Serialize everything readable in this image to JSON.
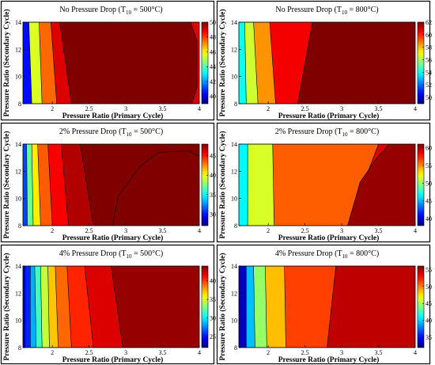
{
  "figure": {
    "title": ""
  },
  "chart_data": [
    {
      "type": "heatmap",
      "title_pre": "No Pressure Drop (T",
      "title_sub": "10",
      "title_post": " = 500°C)",
      "xlabel": "Pressure Ratio (Primary Cycle)",
      "ylabel": "Pressure Ratio (Secondary Cycle)",
      "xlim": [
        1.6,
        4.0
      ],
      "ylim": [
        8,
        14
      ],
      "xticks": [
        "2",
        "2.5",
        "3",
        "3.5",
        "4"
      ],
      "yticks": [
        "8",
        "10",
        "12",
        "14"
      ],
      "colorbar": {
        "min": 39,
        "max": 50,
        "ticks": [
          "40",
          "42",
          "44",
          "46",
          "48",
          "50"
        ]
      },
      "regions": [
        {
          "level": 40.5,
          "x_bottom": 1.72,
          "x_top": 1.68
        },
        {
          "level": 45.5,
          "x_bottom": 1.86,
          "x_top": 1.82
        },
        {
          "level": 47.5,
          "x_bottom": 2.06,
          "x_top": 1.98
        },
        {
          "level": 49.0,
          "x_bottom": 2.26,
          "x_top": 2.1
        },
        {
          "level": 50.0
        }
      ],
      "right_boundary": {
        "top": [
          3.88,
          14
        ],
        "right_top": [
          3.97,
          12.6
        ],
        "right_bottom": [
          3.97,
          9.2
        ],
        "bottom": [
          3.9,
          8
        ],
        "level": 49.0
      }
    },
    {
      "type": "heatmap",
      "title_pre": "No Pressure Drop (T",
      "title_sub": "10",
      "title_post": " = 800°C)",
      "xlabel": "Pressure Ratio (Primary Cycle)",
      "ylabel": "Pressure Ratio (Secondary Cycle)",
      "xlim": [
        1.6,
        4.0
      ],
      "ylim": [
        8,
        14
      ],
      "xticks": [
        "2",
        "2.5",
        "3",
        "3.5",
        "4"
      ],
      "yticks": [
        "8",
        "10",
        "12",
        "14"
      ],
      "colorbar": {
        "min": 49,
        "max": 62,
        "ticks": [
          "50",
          "52",
          "54",
          "56",
          "58",
          "60",
          "62"
        ]
      },
      "regions": [
        {
          "level": 54.0,
          "x_bottom": 1.7,
          "x_top": 1.68
        },
        {
          "level": 56.5,
          "x_bottom": 1.86,
          "x_top": 1.8
        },
        {
          "level": 58.5,
          "x_bottom": 2.1,
          "x_top": 2.02
        },
        {
          "level": 60.5,
          "x_bottom": 2.4,
          "x_top": 2.6
        },
        {
          "level": 62.0
        }
      ]
    },
    {
      "type": "heatmap",
      "title_pre": "2% Pressure Drop (T",
      "title_sub": "10",
      "title_post": " = 500°C)",
      "xlabel": "Pressure Ratio (Primary Cycle)",
      "ylabel": "Pressure Ratio (Secondary Cycle)",
      "xlim": [
        1.6,
        4.0
      ],
      "ylim": [
        8,
        14
      ],
      "xticks": [
        "2",
        "2.5",
        "3",
        "3.5",
        "4"
      ],
      "yticks": [
        "8",
        "10",
        "12",
        "14"
      ],
      "colorbar": {
        "min": 27,
        "max": 48,
        "ticks": [
          "30",
          "35",
          "40",
          "45"
        ]
      },
      "regions": [
        {
          "level": 31.0,
          "x_bottom": 1.66,
          "x_top": 1.65
        },
        {
          "level": 37.0,
          "x_bottom": 1.74,
          "x_top": 1.72
        },
        {
          "level": 40.5,
          "x_bottom": 1.84,
          "x_top": 1.8
        },
        {
          "level": 43.5,
          "x_bottom": 2.0,
          "x_top": 1.94
        },
        {
          "level": 45.5,
          "x_bottom": 2.22,
          "x_top": 2.12
        },
        {
          "level": 47.0,
          "x_bottom": 2.56,
          "x_top": 2.38
        },
        {
          "level": 48.0
        }
      ],
      "hump": {
        "level": 47.0
      }
    },
    {
      "type": "heatmap",
      "title_pre": "2% Pressure Drop (T",
      "title_sub": "10",
      "title_post": " = 800°C)",
      "xlabel": "Pressure Ratio (Primary Cycle)",
      "ylabel": "Pressure Ratio (Secondary Cycle)",
      "xlim": [
        1.6,
        4.0
      ],
      "ylim": [
        8,
        14
      ],
      "xticks": [
        "2",
        "2.5",
        "3",
        "3.5",
        "4"
      ],
      "yticks": [
        "8",
        "10",
        "12",
        "14"
      ],
      "colorbar": {
        "min": 38,
        "max": 61,
        "ticks": [
          "40",
          "45",
          "50",
          "55",
          "60"
        ]
      },
      "regions": [
        {
          "level": 46.5,
          "x_bottom": 1.72,
          "x_top": 1.72
        },
        {
          "level": 51.5,
          "x_bottom": 2.08,
          "x_top": 2.06
        },
        {
          "level": 56.0,
          "x_bottom": 3.08,
          "x_top": 3.5
        },
        {
          "level": 59.0,
          "x_bottom": 4.0,
          "x_top": 4.0
        },
        {
          "level": 60.5
        }
      ],
      "wedge": {
        "level": 60.5
      }
    },
    {
      "type": "heatmap",
      "title_pre": "4% Pressure Drop (T",
      "title_sub": "10",
      "title_post": " = 500°C)",
      "xlabel": "Pressure Ratio (Primary Cycle)",
      "ylabel": "Pressure Ratio (Secondary Cycle)",
      "xlim": [
        1.6,
        4.0
      ],
      "ylim": [
        8,
        14
      ],
      "xticks": [
        "2",
        "2.5",
        "3",
        "3.5",
        "4"
      ],
      "yticks": [
        "8",
        "10",
        "12",
        "14"
      ],
      "colorbar": {
        "min": 22,
        "max": 44,
        "ticks": [
          "25",
          "30",
          "35",
          "40"
        ]
      },
      "regions": [
        {
          "level": 23.0,
          "x_bottom": 1.63,
          "x_top": 1.63
        },
        {
          "level": 25.5,
          "x_bottom": 1.7,
          "x_top": 1.7
        },
        {
          "level": 28.5,
          "x_bottom": 1.78,
          "x_top": 1.76
        },
        {
          "level": 31.5,
          "x_bottom": 1.86,
          "x_top": 1.84
        },
        {
          "level": 34.5,
          "x_bottom": 1.96,
          "x_top": 1.94
        },
        {
          "level": 37.0,
          "x_bottom": 2.08,
          "x_top": 2.04
        },
        {
          "level": 39.0,
          "x_bottom": 2.26,
          "x_top": 2.2
        },
        {
          "level": 40.5,
          "x_bottom": 2.56,
          "x_top": 2.44
        },
        {
          "level": 42.0,
          "x_bottom": 2.96,
          "x_top": 2.8
        },
        {
          "level": 43.5
        }
      ]
    },
    {
      "type": "heatmap",
      "title_pre": "4% Pressure Drop (T",
      "title_sub": "10",
      "title_post": " = 800°C)",
      "xlabel": "Pressure Ratio (Primary Cycle)",
      "ylabel": "Pressure Ratio (Secondary Cycle)",
      "xlim": [
        1.6,
        4.0
      ],
      "ylim": [
        8,
        14
      ],
      "xticks": [
        "2",
        "2.5",
        "3",
        "3.5",
        "4"
      ],
      "yticks": [
        "8",
        "10",
        "12",
        "14"
      ],
      "colorbar": {
        "min": 32,
        "max": 56,
        "ticks": [
          "35",
          "40",
          "45",
          "50",
          "55"
        ]
      },
      "regions": [
        {
          "level": 33.5,
          "x_bottom": 1.7,
          "x_top": 1.7
        },
        {
          "level": 39.5,
          "x_bottom": 1.82,
          "x_top": 1.8
        },
        {
          "level": 44.5,
          "x_bottom": 1.98,
          "x_top": 1.96
        },
        {
          "level": 48.5,
          "x_bottom": 2.24,
          "x_top": 2.22
        },
        {
          "level": 51.5,
          "x_bottom": 2.8,
          "x_top": 2.92
        },
        {
          "level": 54.5
        }
      ]
    }
  ]
}
